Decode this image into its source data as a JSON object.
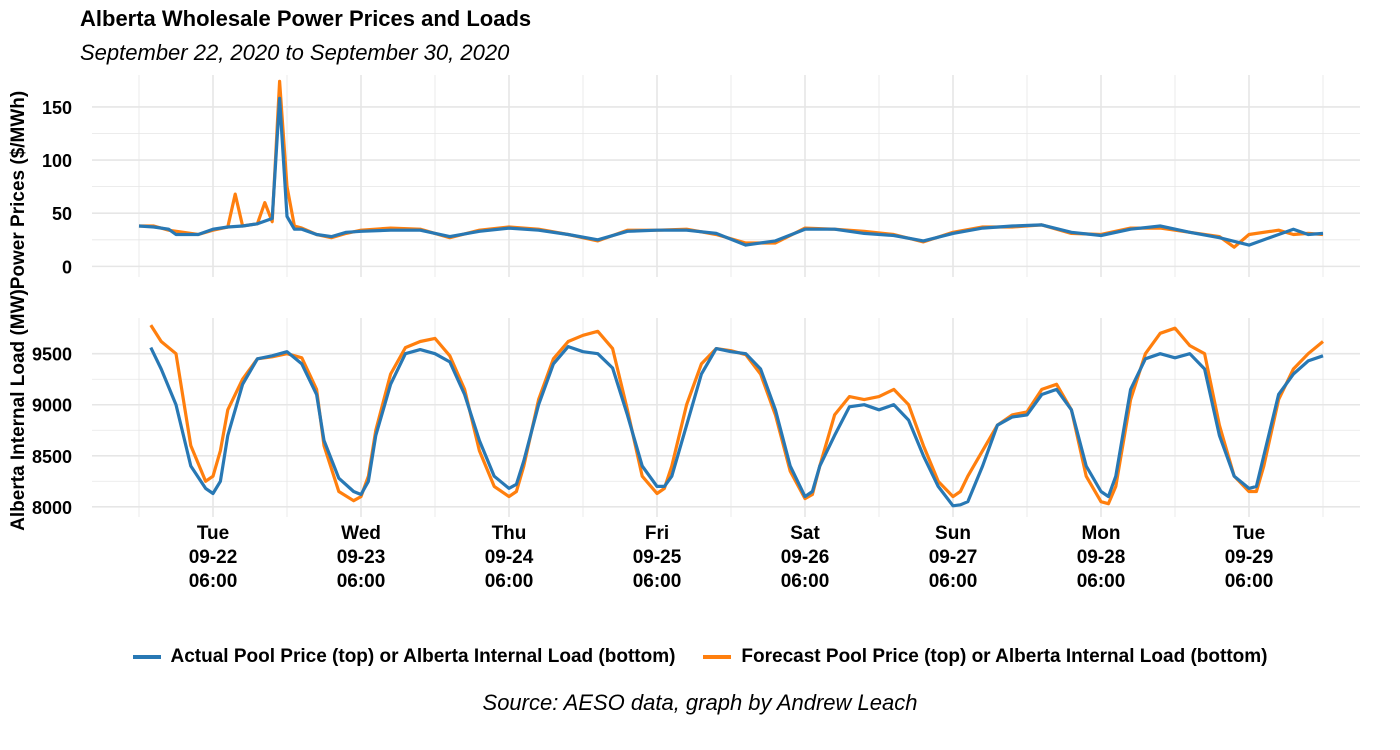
{
  "title": "Alberta Wholesale Power Prices and Loads",
  "subtitle": "September 22, 2020 to September 30, 2020",
  "caption": "Source: AESO data, graph by Andrew Leach",
  "colors": {
    "actual": "#2878b4",
    "forecast": "#ff7f0e",
    "grid": "#e6e6e6"
  },
  "legend": [
    {
      "label": "Actual Pool Price (top) or Alberta Internal Load (bottom)",
      "color": "#2878b4"
    },
    {
      "label": "Forecast Pool Price (top) or Alberta Internal Load (bottom)",
      "color": "#ff7f0e"
    }
  ],
  "chart_data": [
    {
      "type": "line",
      "panel": "top",
      "ylabel": "Power Prices ($/MWh)",
      "ylim": [
        -10,
        180
      ],
      "yticks": [
        0,
        50,
        100,
        150
      ],
      "xlim": [
        -0.5,
        7.5
      ],
      "x_unit": "days from Tue 09-22 06:00",
      "series": [
        {
          "name": "Actual Pool Price",
          "color": "#2878b4",
          "x": [
            -0.5,
            -0.4,
            -0.3,
            -0.25,
            -0.2,
            -0.1,
            0,
            0.1,
            0.2,
            0.3,
            0.4,
            0.45,
            0.5,
            0.55,
            0.6,
            0.7,
            0.8,
            0.9,
            1,
            1.2,
            1.4,
            1.6,
            1.8,
            2,
            2.2,
            2.4,
            2.6,
            2.8,
            3,
            3.2,
            3.4,
            3.6,
            3.8,
            4,
            4.2,
            4.4,
            4.6,
            4.8,
            5,
            5.2,
            5.4,
            5.6,
            5.8,
            6,
            6.2,
            6.4,
            6.6,
            6.8,
            7,
            7.2,
            7.3,
            7.4,
            7.5
          ],
          "y": [
            38,
            37,
            35,
            30,
            30,
            30,
            35,
            37,
            38,
            40,
            45,
            158,
            47,
            35,
            35,
            30,
            28,
            32,
            33,
            34,
            34,
            28,
            33,
            36,
            34,
            30,
            25,
            33,
            34,
            34,
            31,
            20,
            24,
            35,
            35,
            31,
            29,
            24,
            31,
            36,
            38,
            39,
            32,
            29,
            35,
            38,
            32,
            27,
            20,
            30,
            35,
            30,
            31
          ]
        },
        {
          "name": "Forecast Pool Price",
          "color": "#ff7f0e",
          "x": [
            -0.5,
            -0.4,
            -0.3,
            -0.2,
            -0.1,
            0,
            0.1,
            0.15,
            0.2,
            0.3,
            0.35,
            0.4,
            0.45,
            0.5,
            0.55,
            0.6,
            0.7,
            0.8,
            0.9,
            1,
            1.2,
            1.4,
            1.6,
            1.8,
            2,
            2.2,
            2.4,
            2.6,
            2.8,
            3,
            3.2,
            3.4,
            3.6,
            3.8,
            4,
            4.2,
            4.4,
            4.6,
            4.8,
            5,
            5.2,
            5.4,
            5.6,
            5.8,
            6,
            6.2,
            6.4,
            6.6,
            6.8,
            6.9,
            7,
            7.2,
            7.3,
            7.4,
            7.5
          ],
          "y": [
            38,
            38,
            34,
            32,
            30,
            34,
            37,
            68,
            38,
            40,
            60,
            42,
            174,
            75,
            38,
            36,
            30,
            27,
            31,
            34,
            36,
            35,
            27,
            34,
            37,
            35,
            30,
            24,
            34,
            34,
            35,
            30,
            22,
            22,
            36,
            35,
            33,
            30,
            23,
            32,
            37,
            37,
            39,
            31,
            30,
            36,
            36,
            32,
            28,
            18,
            30,
            34,
            30,
            31,
            30
          ]
        }
      ]
    },
    {
      "type": "line",
      "panel": "bottom",
      "ylabel": "Alberta Internal Load (MW)",
      "ylim": [
        7900,
        9850
      ],
      "yticks": [
        8000,
        8500,
        9000,
        9500
      ],
      "xlim": [
        -0.5,
        7.5
      ],
      "x_unit": "days from Tue 09-22 06:00",
      "xticks": [
        {
          "x": 0,
          "day": "Tue",
          "date": "09-22",
          "time": "06:00"
        },
        {
          "x": 1,
          "day": "Wed",
          "date": "09-23",
          "time": "06:00"
        },
        {
          "x": 2,
          "day": "Thu",
          "date": "09-24",
          "time": "06:00"
        },
        {
          "x": 3,
          "day": "Fri",
          "date": "09-25",
          "time": "06:00"
        },
        {
          "x": 4,
          "day": "Sat",
          "date": "09-26",
          "time": "06:00"
        },
        {
          "x": 5,
          "day": "Sun",
          "date": "09-27",
          "time": "06:00"
        },
        {
          "x": 6,
          "day": "Mon",
          "date": "09-28",
          "time": "06:00"
        },
        {
          "x": 7,
          "day": "Tue",
          "date": "09-29",
          "time": "06:00"
        }
      ],
      "series": [
        {
          "name": "Actual Alberta Internal Load",
          "color": "#2878b4",
          "x": [
            -0.42,
            -0.35,
            -0.25,
            -0.15,
            -0.05,
            0,
            0.05,
            0.1,
            0.2,
            0.3,
            0.4,
            0.5,
            0.6,
            0.7,
            0.75,
            0.85,
            0.95,
            1,
            1.05,
            1.1,
            1.2,
            1.3,
            1.4,
            1.5,
            1.6,
            1.7,
            1.8,
            1.9,
            2,
            2.05,
            2.1,
            2.2,
            2.3,
            2.4,
            2.5,
            2.6,
            2.7,
            2.8,
            2.9,
            3,
            3.05,
            3.1,
            3.2,
            3.3,
            3.4,
            3.5,
            3.6,
            3.7,
            3.8,
            3.9,
            4,
            4.05,
            4.1,
            4.2,
            4.3,
            4.4,
            4.5,
            4.6,
            4.7,
            4.8,
            4.9,
            5,
            5.05,
            5.1,
            5.2,
            5.3,
            5.4,
            5.5,
            5.6,
            5.7,
            5.8,
            5.9,
            6,
            6.05,
            6.1,
            6.2,
            6.3,
            6.4,
            6.5,
            6.6,
            6.7,
            6.8,
            6.9,
            7,
            7.05,
            7.1,
            7.2,
            7.3,
            7.4,
            7.5
          ],
          "y": [
            9560,
            9350,
            9000,
            8400,
            8180,
            8130,
            8250,
            8700,
            9200,
            9450,
            9480,
            9520,
            9400,
            9100,
            8650,
            8280,
            8150,
            8120,
            8250,
            8700,
            9200,
            9500,
            9540,
            9500,
            9420,
            9100,
            8650,
            8300,
            8180,
            8220,
            8450,
            9000,
            9400,
            9570,
            9520,
            9500,
            9360,
            8900,
            8400,
            8200,
            8200,
            8300,
            8800,
            9300,
            9550,
            9520,
            9500,
            9350,
            8950,
            8400,
            8100,
            8150,
            8400,
            8700,
            8980,
            9000,
            8950,
            9000,
            8850,
            8500,
            8200,
            8010,
            8020,
            8050,
            8400,
            8800,
            8880,
            8900,
            9100,
            9150,
            8950,
            8400,
            8150,
            8100,
            8300,
            9150,
            9450,
            9500,
            9460,
            9500,
            9350,
            8700,
            8300,
            8180,
            8200,
            8500,
            9100,
            9300,
            9430,
            9480
          ]
        },
        {
          "name": "Forecast Alberta Internal Load",
          "color": "#ff7f0e",
          "x": [
            -0.42,
            -0.35,
            -0.25,
            -0.15,
            -0.05,
            0,
            0.05,
            0.1,
            0.2,
            0.3,
            0.4,
            0.5,
            0.6,
            0.7,
            0.75,
            0.85,
            0.95,
            1,
            1.05,
            1.1,
            1.2,
            1.3,
            1.4,
            1.5,
            1.6,
            1.7,
            1.8,
            1.9,
            2,
            2.05,
            2.1,
            2.2,
            2.3,
            2.4,
            2.5,
            2.6,
            2.7,
            2.8,
            2.9,
            3,
            3.05,
            3.1,
            3.2,
            3.3,
            3.4,
            3.5,
            3.6,
            3.7,
            3.8,
            3.9,
            4,
            4.05,
            4.1,
            4.2,
            4.3,
            4.4,
            4.5,
            4.6,
            4.7,
            4.8,
            4.9,
            5,
            5.05,
            5.1,
            5.2,
            5.3,
            5.4,
            5.5,
            5.6,
            5.7,
            5.8,
            5.9,
            6,
            6.05,
            6.1,
            6.2,
            6.3,
            6.4,
            6.5,
            6.6,
            6.7,
            6.8,
            6.9,
            7,
            7.05,
            7.1,
            7.2,
            7.3,
            7.4,
            7.5
          ],
          "y": [
            9780,
            9620,
            9500,
            8600,
            8250,
            8300,
            8550,
            8950,
            9250,
            9450,
            9470,
            9500,
            9460,
            9150,
            8600,
            8150,
            8060,
            8100,
            8300,
            8750,
            9300,
            9560,
            9620,
            9650,
            9480,
            9150,
            8550,
            8200,
            8100,
            8150,
            8400,
            9050,
            9450,
            9620,
            9680,
            9720,
            9550,
            8950,
            8300,
            8130,
            8180,
            8400,
            9000,
            9400,
            9550,
            9530,
            9490,
            9300,
            8900,
            8350,
            8080,
            8120,
            8400,
            8900,
            9080,
            9050,
            9080,
            9150,
            9000,
            8600,
            8250,
            8100,
            8150,
            8300,
            8550,
            8800,
            8900,
            8930,
            9150,
            9200,
            8950,
            8300,
            8050,
            8030,
            8200,
            9050,
            9500,
            9700,
            9750,
            9580,
            9500,
            8800,
            8300,
            8150,
            8150,
            8400,
            9050,
            9350,
            9500,
            9620
          ]
        }
      ]
    }
  ]
}
